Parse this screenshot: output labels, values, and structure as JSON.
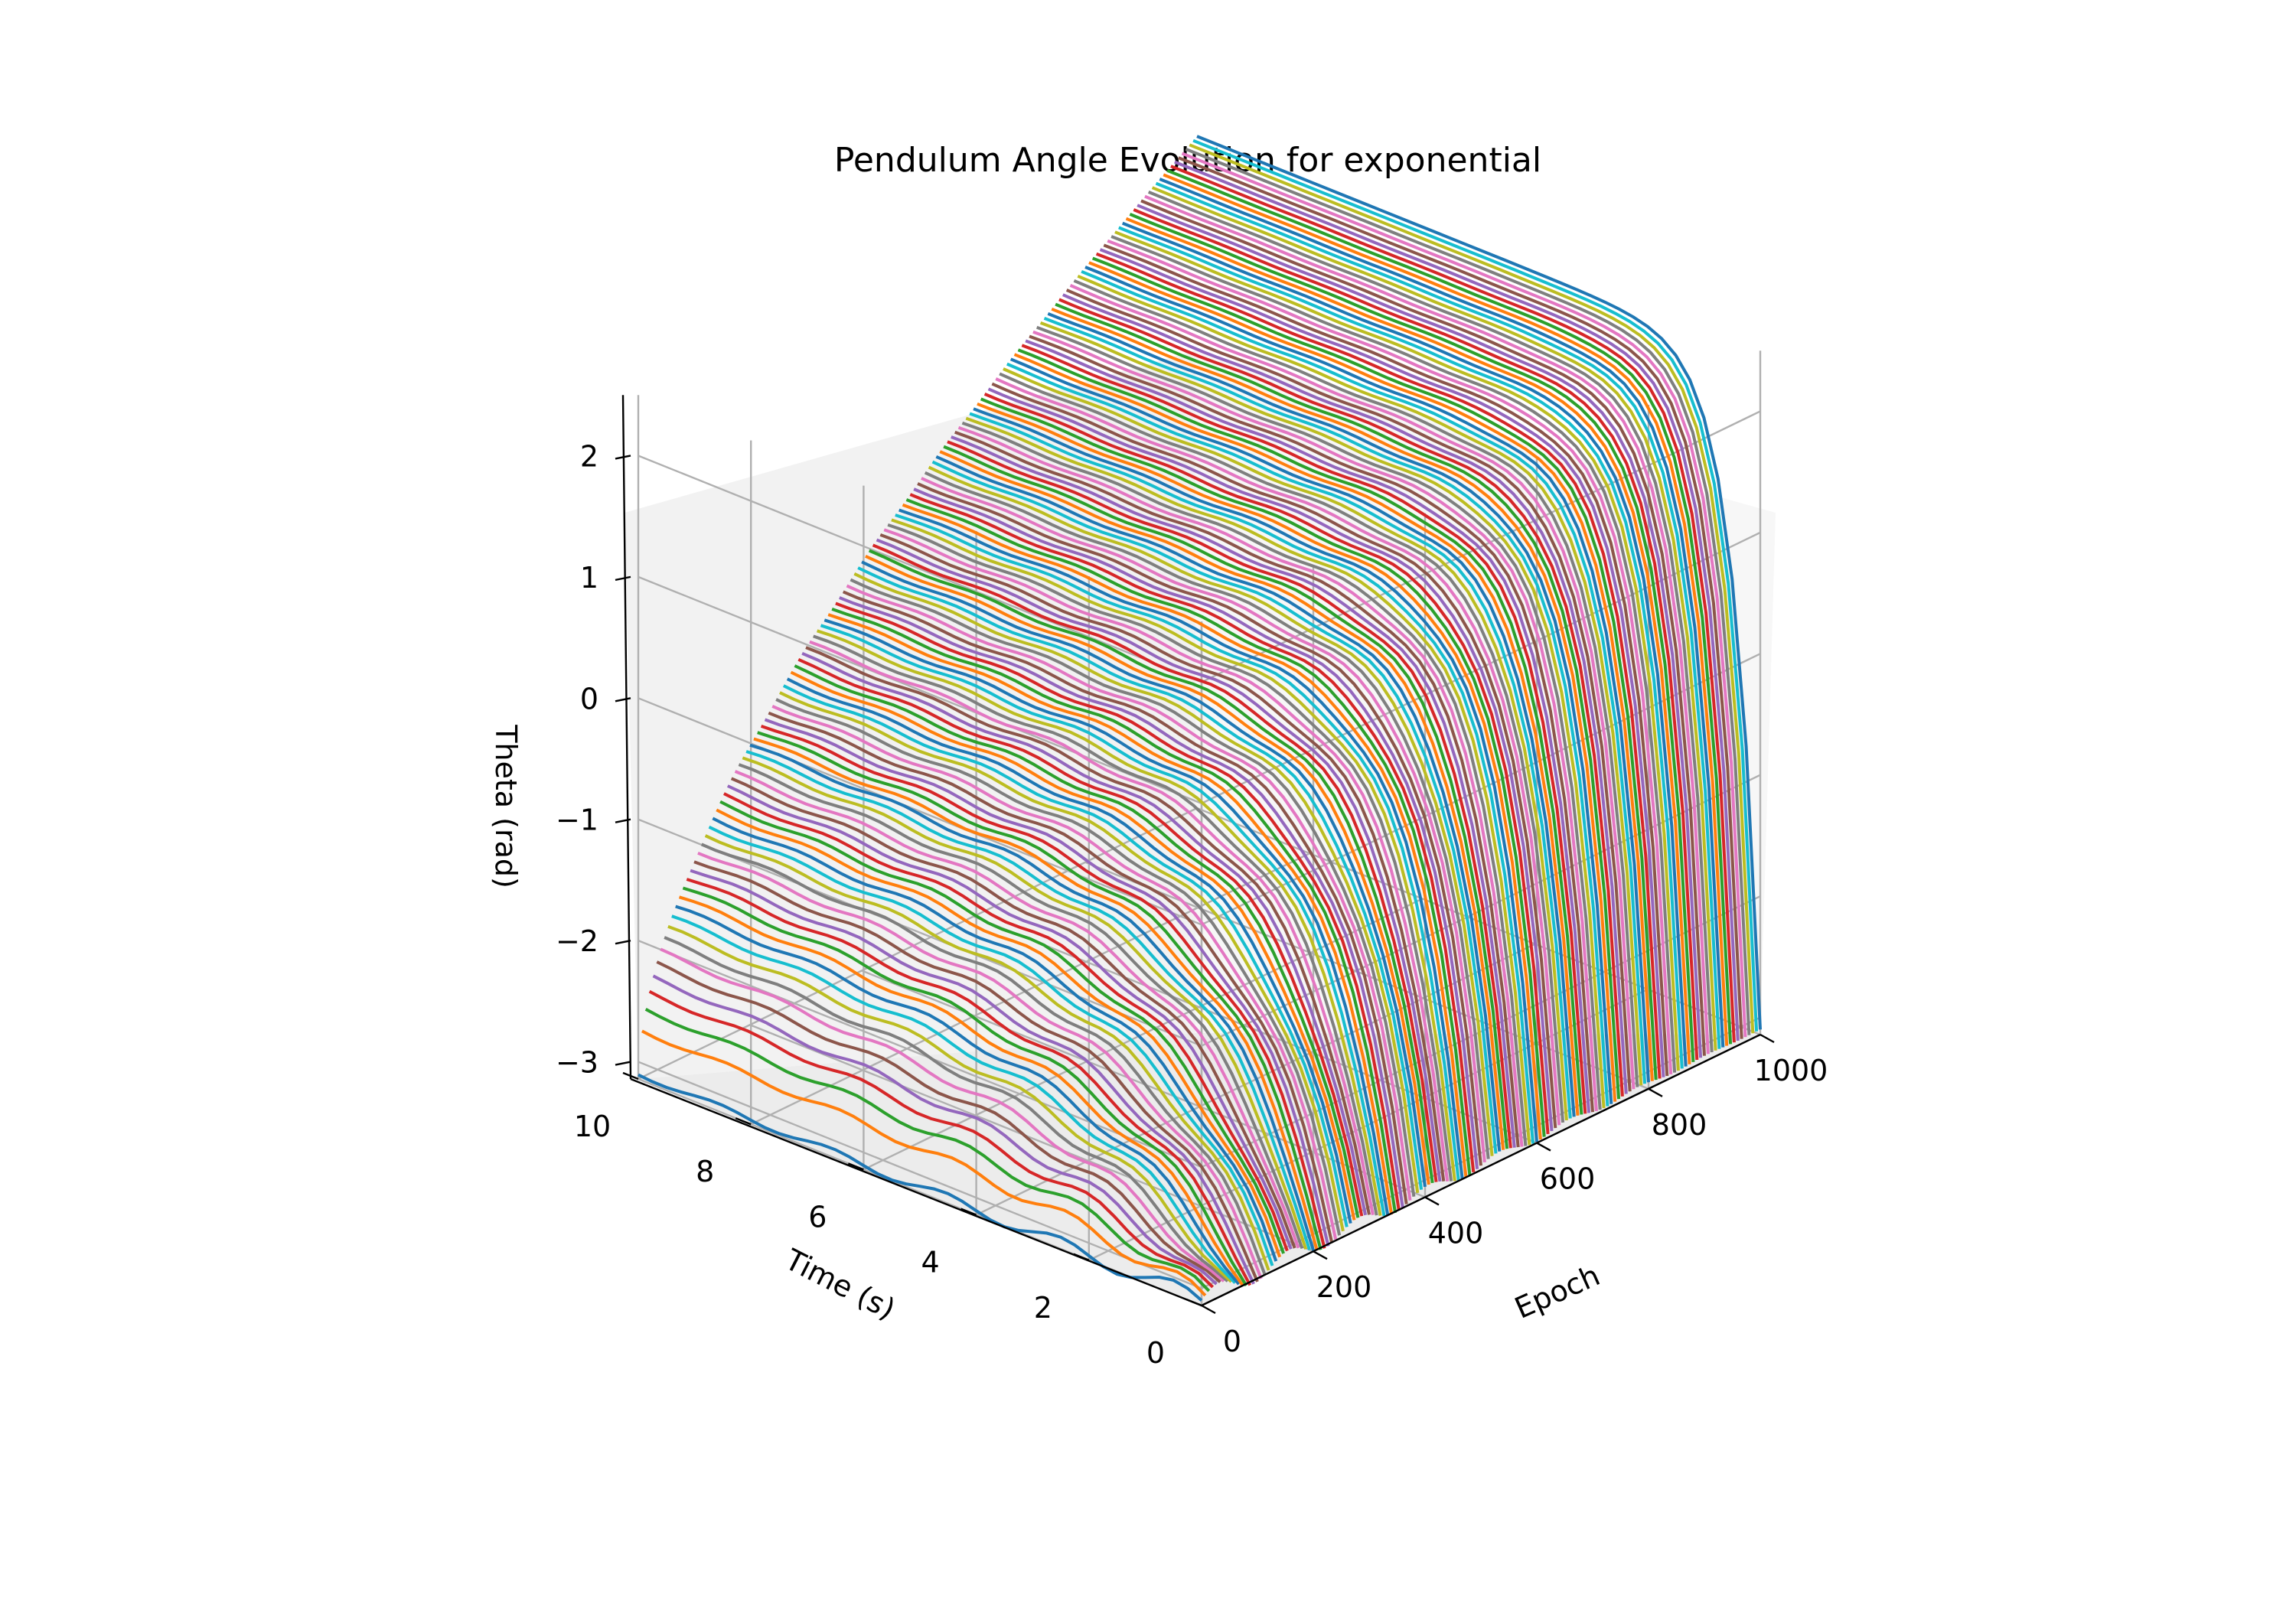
{
  "chart_data": {
    "type": "line",
    "projection": "3d",
    "title": "Pendulum Angle Evolution for exponential",
    "xlabel": "Epoch",
    "ylabel": "Time (s)",
    "zlabel": "Theta (rad)",
    "xlim": [
      0,
      1000
    ],
    "ylim": [
      0,
      10
    ],
    "zlim": [
      -3.1416,
      2.5
    ],
    "x_ticks": [
      "0",
      "200",
      "400",
      "600",
      "800",
      "1000"
    ],
    "y_ticks": [
      "0",
      "2",
      "4",
      "6",
      "8",
      "10"
    ],
    "z_ticks": [
      "−3",
      "−2",
      "−1",
      "0",
      "1",
      "2"
    ],
    "grid": true,
    "series_count": 1000,
    "series_description": "one theta(t) trajectory per training epoch, t from 0 to 10 s",
    "initial_theta": -3.1,
    "final_theta_range": [
      -3.1,
      2.4
    ],
    "colors": [
      "#1f77b4",
      "#ff7f0e",
      "#2ca02c",
      "#d62728",
      "#9467bd",
      "#8c564b",
      "#e377c2",
      "#7f7f7f",
      "#bcbd22",
      "#17becf"
    ]
  }
}
